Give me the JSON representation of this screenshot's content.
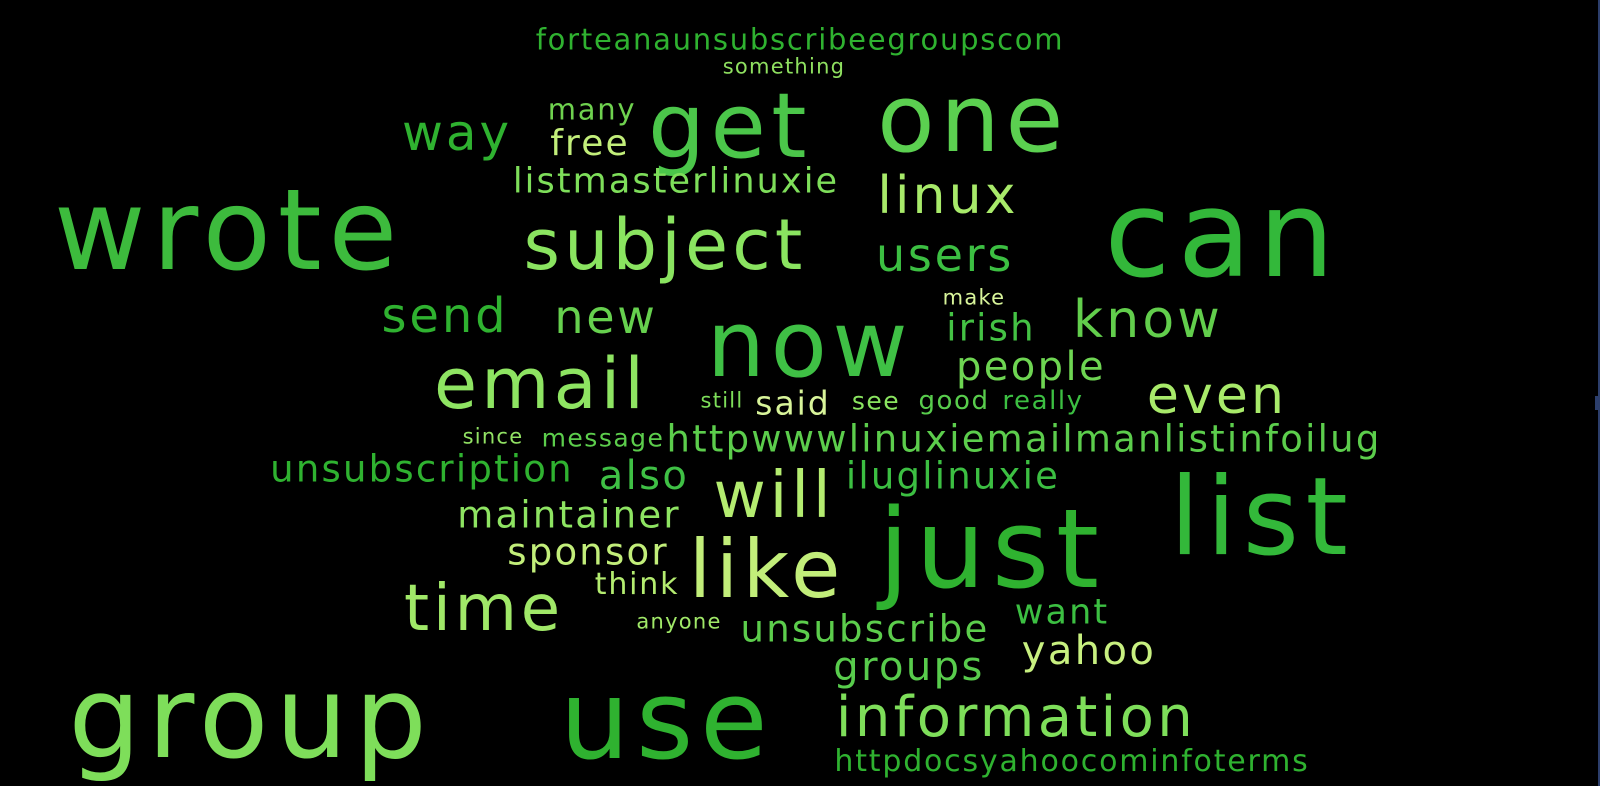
{
  "background": "#000000",
  "palette": {
    "dark_green": "#2fb230",
    "mid_green": "#48c548",
    "light_green": "#7ede5a",
    "yellow_green": "#c8f080"
  },
  "words": [
    {
      "text": "forteanaunsubscribeegroupscom",
      "color": "#2fb230"
    },
    {
      "text": "something",
      "color": "#8fe060"
    },
    {
      "text": "many",
      "color": "#6fd24f"
    },
    {
      "text": "way",
      "color": "#2fb230"
    },
    {
      "text": "free",
      "color": "#c2ee7a"
    },
    {
      "text": "get",
      "color": "#4bc64a"
    },
    {
      "text": "one",
      "color": "#5bd050"
    },
    {
      "text": "listmasterlinuxie",
      "color": "#7ede5a"
    },
    {
      "text": "linux",
      "color": "#a8ea6a"
    },
    {
      "text": "wrote",
      "color": "#3dbb3d"
    },
    {
      "text": "subject",
      "color": "#8ae460"
    },
    {
      "text": "users",
      "color": "#3cbf42"
    },
    {
      "text": "can",
      "color": "#33b83a"
    },
    {
      "text": "make",
      "color": "#d8f49a"
    },
    {
      "text": "send",
      "color": "#2fb230"
    },
    {
      "text": "new",
      "color": "#66d04e"
    },
    {
      "text": "now",
      "color": "#3fc045"
    },
    {
      "text": "irish",
      "color": "#44c244"
    },
    {
      "text": "know",
      "color": "#62ce4c"
    },
    {
      "text": "email",
      "color": "#8ee462"
    },
    {
      "text": "people",
      "color": "#6ed552"
    },
    {
      "text": "still",
      "color": "#7ede5a"
    },
    {
      "text": "said",
      "color": "#d8f49a"
    },
    {
      "text": "see",
      "color": "#8ae460"
    },
    {
      "text": "good",
      "color": "#58cc4c"
    },
    {
      "text": "really",
      "color": "#3cbf42"
    },
    {
      "text": "even",
      "color": "#a8ea6a"
    },
    {
      "text": "since",
      "color": "#92e264"
    },
    {
      "text": "message",
      "color": "#5ccd4c"
    },
    {
      "text": "httpwwwlinuxiemailmanlistinfoilug",
      "color": "#5ccd4c"
    },
    {
      "text": "unsubscription",
      "color": "#2fb230"
    },
    {
      "text": "also",
      "color": "#3fc045"
    },
    {
      "text": "will",
      "color": "#b4ec70"
    },
    {
      "text": "iluglinuxie",
      "color": "#3cbf42"
    },
    {
      "text": "maintainer",
      "color": "#8ee462"
    },
    {
      "text": "just",
      "color": "#2fb230"
    },
    {
      "text": "list",
      "color": "#33b83a"
    },
    {
      "text": "sponsor",
      "color": "#c2ee7a"
    },
    {
      "text": "think",
      "color": "#b4ec70"
    },
    {
      "text": "like",
      "color": "#c2ee7a"
    },
    {
      "text": "time",
      "color": "#a0e868"
    },
    {
      "text": "anyone",
      "color": "#a0e868"
    },
    {
      "text": "unsubscribe",
      "color": "#5ccd4c"
    },
    {
      "text": "want",
      "color": "#3cbf42"
    },
    {
      "text": "yahoo",
      "color": "#c8f080"
    },
    {
      "text": "groups",
      "color": "#58cc4c"
    },
    {
      "text": "group",
      "color": "#7ede5a"
    },
    {
      "text": "use",
      "color": "#2fb230"
    },
    {
      "text": "information",
      "color": "#7ede5a"
    },
    {
      "text": "httpdocsyahoocominfoterms",
      "color": "#2fb230"
    }
  ]
}
